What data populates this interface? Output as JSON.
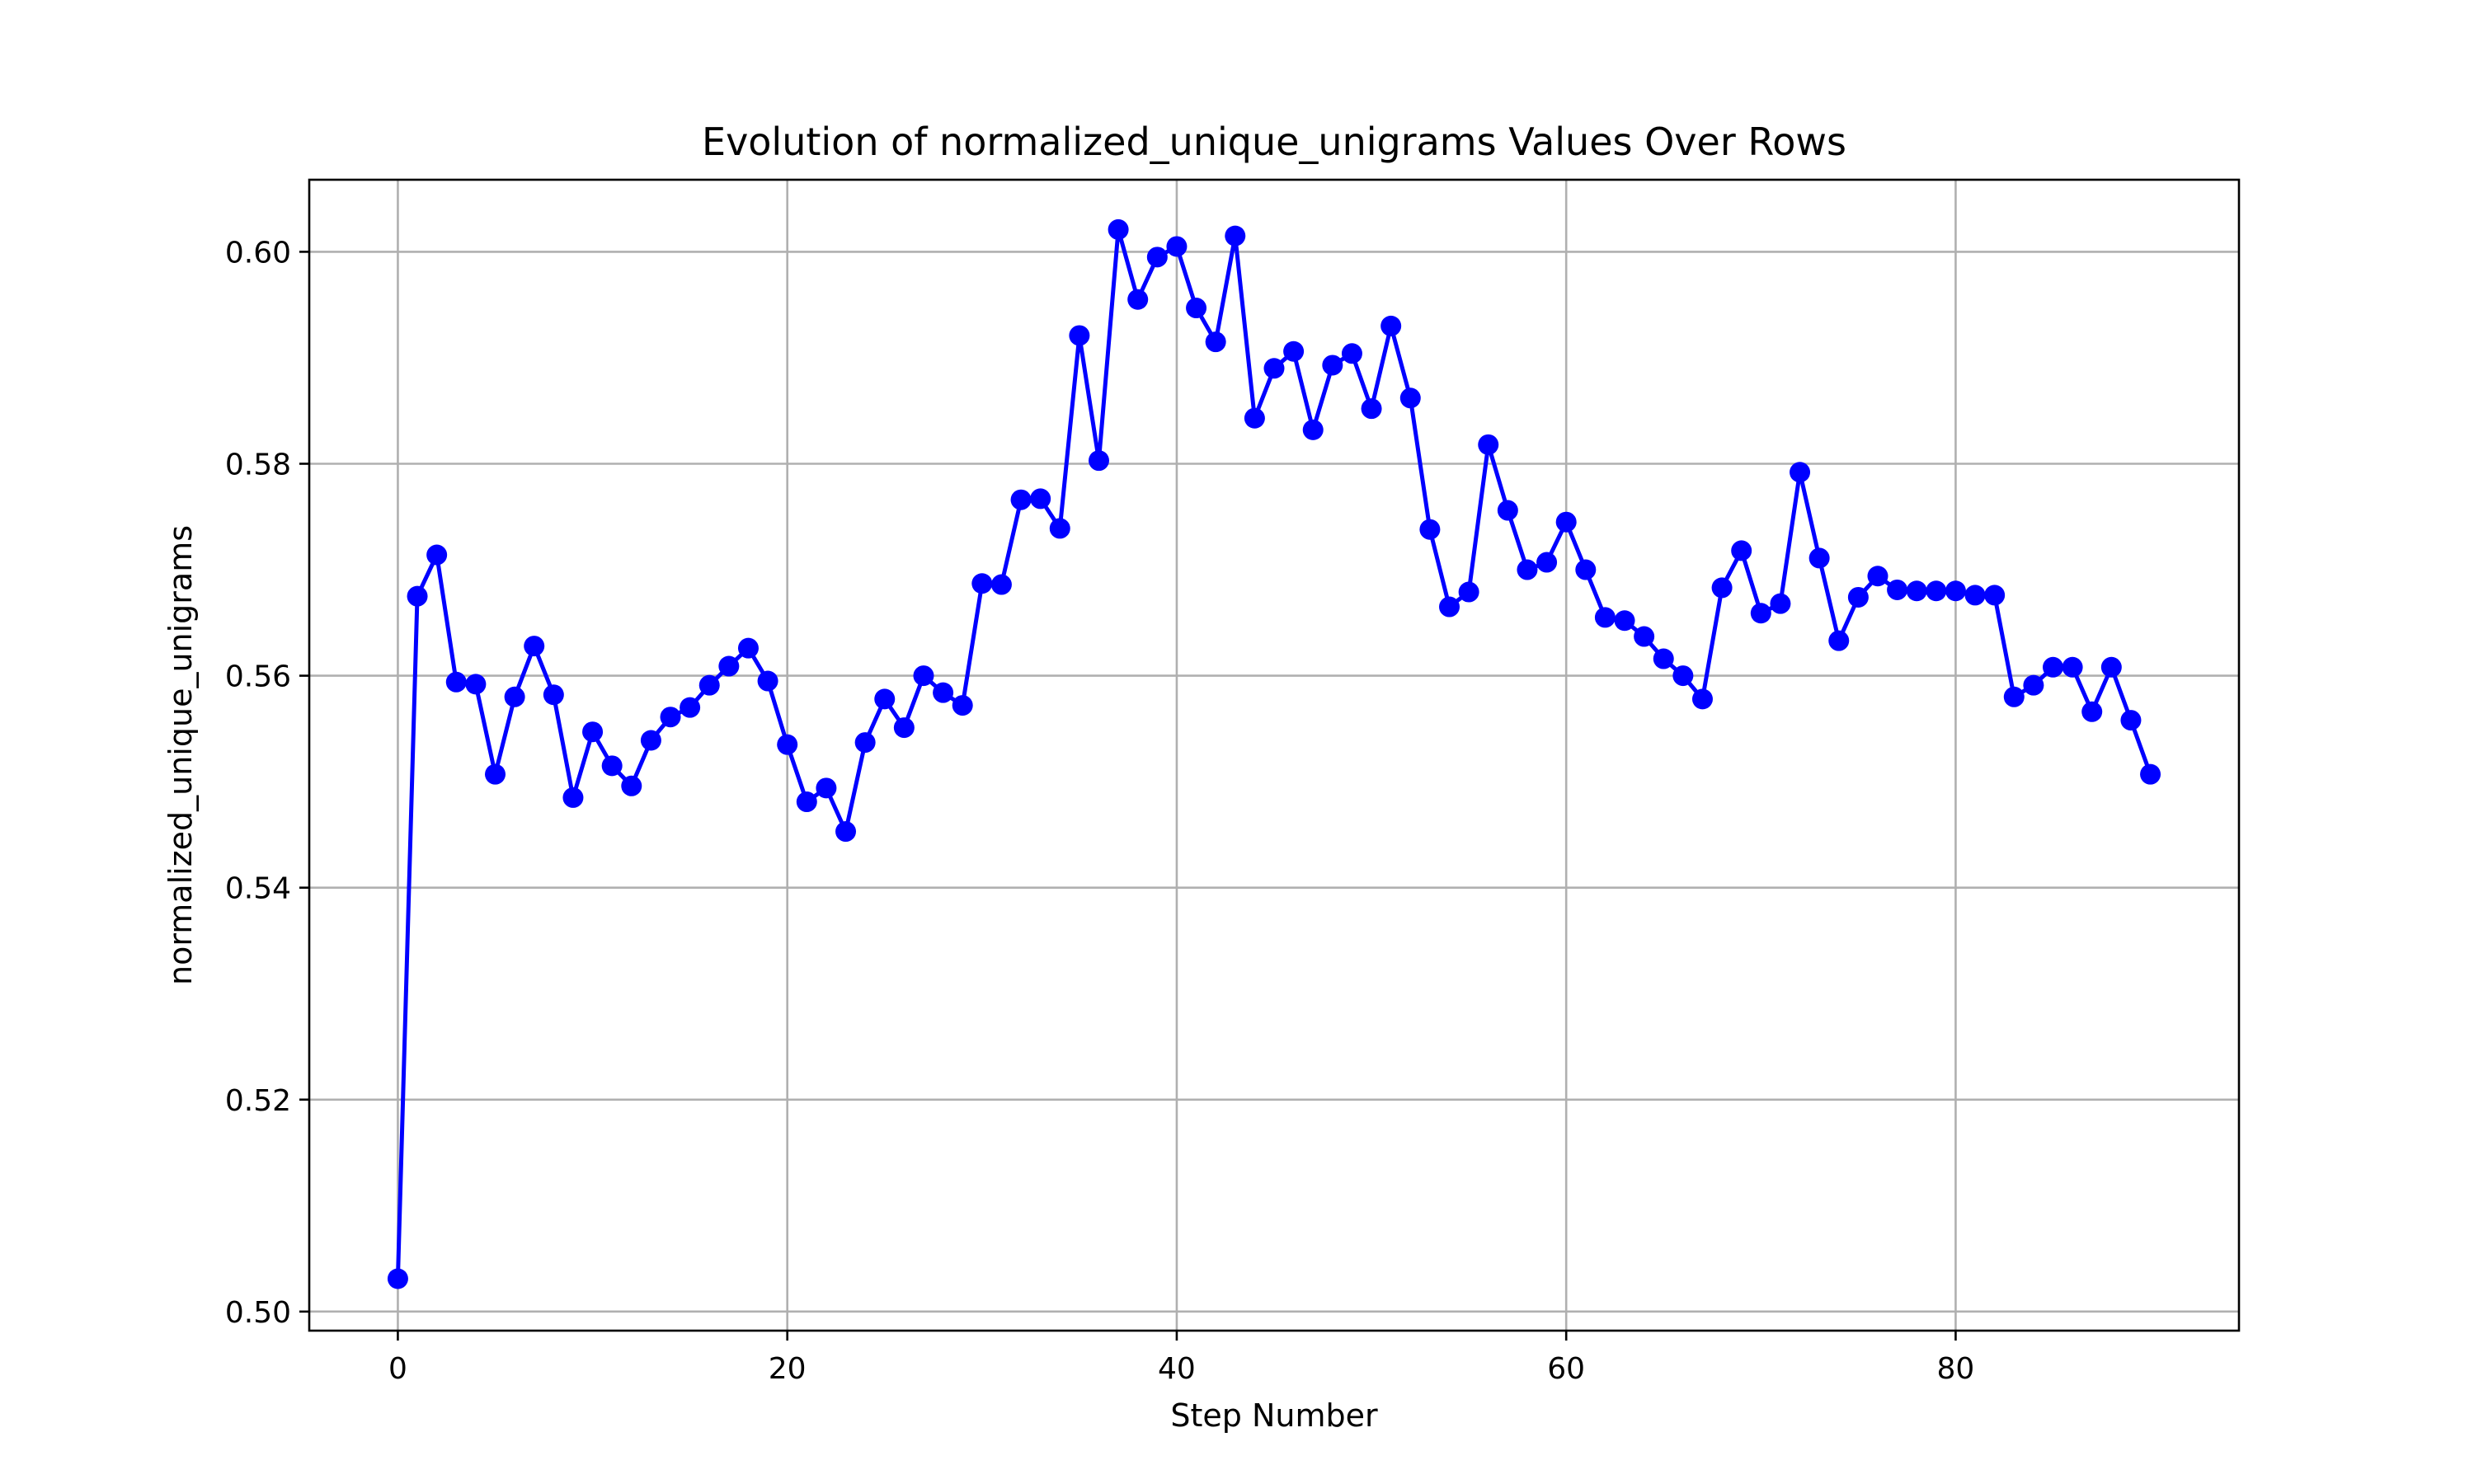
{
  "chart_data": {
    "type": "line",
    "title": "Evolution of normalized_unique_unigrams Values Over Rows",
    "xlabel": "Step Number",
    "ylabel": "normalized_unique_unigrams",
    "xlim": [
      -4.55,
      94.55
    ],
    "ylim": [
      0.4982,
      0.6068
    ],
    "xticks": [
      0,
      20,
      40,
      60,
      80
    ],
    "xtick_labels": [
      "0",
      "20",
      "40",
      "60",
      "80"
    ],
    "yticks": [
      0.5,
      0.52,
      0.54,
      0.56,
      0.58,
      0.6
    ],
    "ytick_labels": [
      "0.50",
      "0.52",
      "0.54",
      "0.56",
      "0.58",
      "0.60"
    ],
    "grid": true,
    "legend": "none",
    "series": [
      {
        "color": "#0000ff",
        "marker": "circle",
        "x": [
          0,
          1,
          2,
          3,
          4,
          5,
          6,
          7,
          8,
          9,
          10,
          11,
          12,
          13,
          14,
          15,
          16,
          17,
          18,
          19,
          20,
          21,
          22,
          23,
          24,
          25,
          26,
          27,
          28,
          29,
          30,
          31,
          32,
          33,
          34,
          35,
          36,
          37,
          38,
          39,
          40,
          41,
          42,
          43,
          44,
          45,
          46,
          47,
          48,
          49,
          50,
          51,
          52,
          53,
          54,
          55,
          56,
          57,
          58,
          59,
          60,
          61,
          62,
          63,
          64,
          65,
          66,
          67,
          68,
          69,
          70,
          71,
          72,
          73,
          74,
          75,
          76,
          77,
          78,
          79,
          80,
          81,
          82,
          83,
          84,
          85,
          86,
          87,
          88,
          89,
          90
        ],
        "y": [
          0.5031,
          0.5675,
          0.5714,
          0.5594,
          0.5592,
          0.5507,
          0.558,
          0.5628,
          0.5582,
          0.5485,
          0.5547,
          0.5515,
          0.5496,
          0.5539,
          0.5561,
          0.557,
          0.5591,
          0.5609,
          0.5626,
          0.5595,
          0.5535,
          0.5481,
          0.5494,
          0.5453,
          0.5537,
          0.5578,
          0.5551,
          0.56,
          0.5584,
          0.5572,
          0.5687,
          0.5686,
          0.5766,
          0.5767,
          0.5739,
          0.5921,
          0.5803,
          0.6021,
          0.5955,
          0.5995,
          0.6005,
          0.5947,
          0.5915,
          0.6015,
          0.5843,
          0.589,
          0.5906,
          0.5832,
          0.5893,
          0.5904,
          0.5852,
          0.593,
          0.5862,
          0.5738,
          0.5665,
          0.5679,
          0.5818,
          0.5756,
          0.57,
          0.5707,
          0.5745,
          0.57,
          0.5655,
          0.5652,
          0.5637,
          0.5616,
          0.56,
          0.5578,
          0.5683,
          0.5718,
          0.5659,
          0.5668,
          0.5792,
          0.5711,
          0.5633,
          0.5674,
          0.5694,
          0.5681,
          0.568,
          0.568,
          0.568,
          0.5676,
          0.5676,
          0.558,
          0.5591,
          0.5608,
          0.5608,
          0.5566,
          0.5608,
          0.5558,
          0.5507
        ]
      }
    ]
  }
}
